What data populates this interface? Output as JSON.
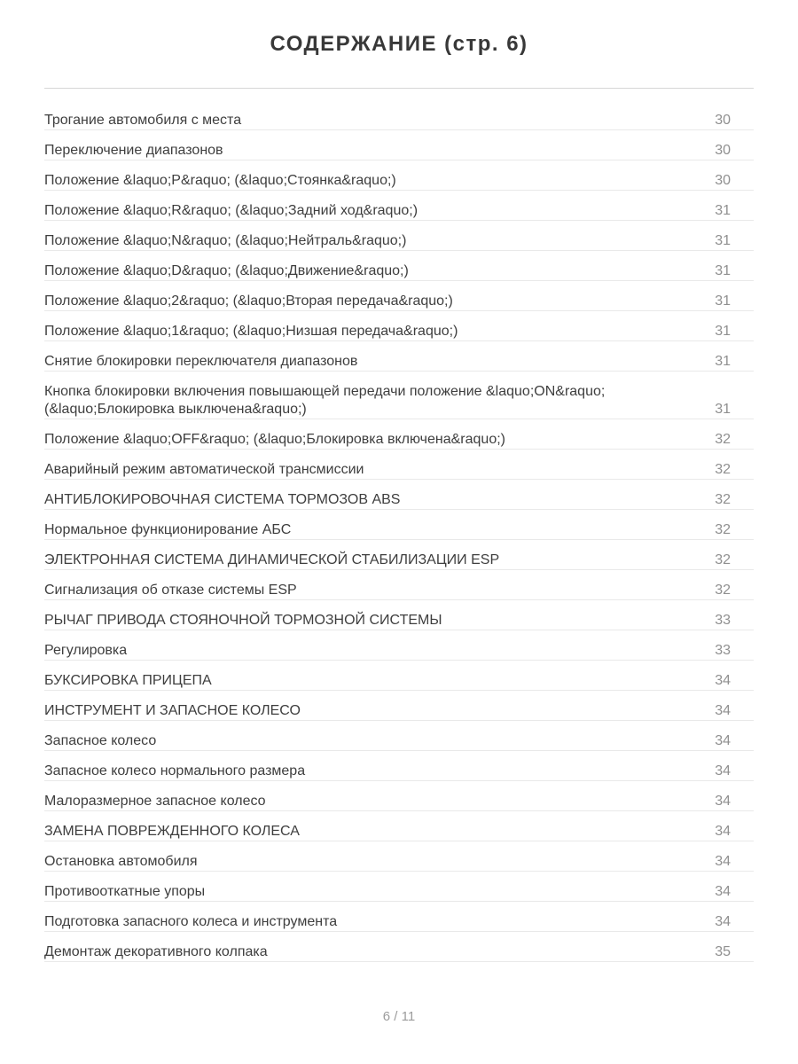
{
  "header": {
    "title": "СОДЕРЖАНИЕ (стр. 6)"
  },
  "toc": {
    "entries": [
      {
        "title": "Трогание автомобиля с места",
        "page": "30"
      },
      {
        "title": "Переключение диапазонов",
        "page": "30"
      },
      {
        "title": "Положение &laquo;P&raquo; (&laquo;Стоянка&raquo;)",
        "page": "30"
      },
      {
        "title": "Положение &laquo;R&raquo; (&laquo;Задний ход&raquo;)",
        "page": "31"
      },
      {
        "title": "Положение &laquo;N&raquo; (&laquo;Нейтраль&raquo;)",
        "page": "31"
      },
      {
        "title": "Положение &laquo;D&raquo; (&laquo;Движение&raquo;)",
        "page": "31"
      },
      {
        "title": "Положение &laquo;2&raquo; (&laquo;Вторая передача&raquo;)",
        "page": "31"
      },
      {
        "title": "Положение &laquo;1&raquo; (&laquo;Низшая передача&raquo;)",
        "page": "31"
      },
      {
        "title": "Снятие блокировки переключателя диапазонов",
        "page": "31"
      },
      {
        "title": "Кнопка блокировки включения повышающей передачи положение &laquo;ON&raquo; (&laquo;Блокировка выключена&raquo;)",
        "page": "31"
      },
      {
        "title": "Положение &laquo;OFF&raquo; (&laquo;Блокировка включена&raquo;)",
        "page": "32"
      },
      {
        "title": "Аварийный режим автоматической трансмиссии",
        "page": "32"
      },
      {
        "title": "АНТИБЛОКИРОВОЧНАЯ СИСТЕМА ТОРМОЗОВ ABS",
        "page": "32"
      },
      {
        "title": "Нормальное функционирование АБС",
        "page": "32"
      },
      {
        "title": "ЭЛЕКТРОННАЯ СИСТЕМА ДИНАМИЧЕСКОЙ СТАБИЛИЗАЦИИ ESP",
        "page": "32"
      },
      {
        "title": "Сигнализация об отказе системы ESP",
        "page": "32"
      },
      {
        "title": "РЫЧАГ ПРИВОДА СТОЯНОЧНОЙ ТОРМОЗНОЙ СИСТЕМЫ",
        "page": "33"
      },
      {
        "title": "Регулировка",
        "page": "33"
      },
      {
        "title": "БУКСИРОВКА ПРИЦЕПА",
        "page": "34"
      },
      {
        "title": "ИНСТРУМЕНТ И ЗАПАСНОЕ КОЛЕСО",
        "page": "34"
      },
      {
        "title": "Запасное колесо",
        "page": "34"
      },
      {
        "title": "Запасное колесо нормального размера",
        "page": "34"
      },
      {
        "title": "Малоразмерное запасное колесо",
        "page": "34"
      },
      {
        "title": "ЗАМЕНА ПОВРЕЖДЕННОГО КОЛЕСА",
        "page": "34"
      },
      {
        "title": "Остановка автомобиля",
        "page": "34"
      },
      {
        "title": "Противооткатные упоры",
        "page": "34"
      },
      {
        "title": "Подготовка запасного колеса и инструмента",
        "page": "34"
      },
      {
        "title": "Демонтаж декоративного колпака",
        "page": "35"
      }
    ]
  },
  "footer": {
    "page_indicator": "6 / 11"
  },
  "colors": {
    "background": "#ffffff",
    "title": "#383838",
    "title_divider": "#d6d6d6",
    "row_text": "#3e3e3e",
    "page_number": "#8f8f8f",
    "divider": "#e9e9e9",
    "footer_text": "#9c9c9c"
  }
}
